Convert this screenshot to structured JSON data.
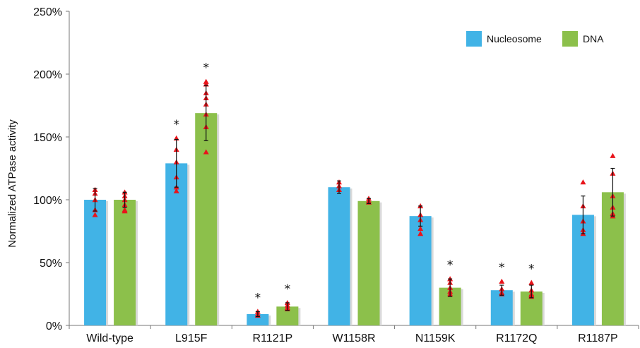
{
  "chart_data": {
    "type": "bar",
    "ylabel": "Normalized ATPase activity",
    "ylim": [
      0,
      250
    ],
    "y_ticks": [
      "0%",
      "50%",
      "100%",
      "150%",
      "200%",
      "250%"
    ],
    "categories": [
      "Wild-type",
      "L915F",
      "R1121P",
      "W1158R",
      "N1159K",
      "R1172Q",
      "R1187P"
    ],
    "legend_position": "top-right",
    "series": [
      {
        "name": "Nucleosome",
        "color": "#41b3e6",
        "values": [
          100,
          129,
          9,
          110,
          87,
          28,
          88
        ],
        "errors": [
          9,
          19,
          2,
          5,
          8,
          4,
          15
        ],
        "significant": [
          false,
          true,
          true,
          false,
          false,
          true,
          false
        ],
        "points": [
          [
            108,
            105,
            100,
            92,
            88
          ],
          [
            149,
            140,
            130,
            118,
            110,
            107
          ],
          [
            11,
            9,
            8
          ],
          [
            114,
            111,
            108
          ],
          [
            95,
            88,
            84,
            77,
            73
          ],
          [
            35,
            29,
            26,
            25
          ],
          [
            114,
            95,
            83,
            76,
            73
          ]
        ]
      },
      {
        "name": "DNA",
        "color": "#8cc04b",
        "values": [
          100,
          169,
          15,
          99,
          30,
          27,
          106
        ],
        "errors": [
          6,
          22,
          3,
          2,
          7,
          5,
          19
        ],
        "significant": [
          false,
          true,
          true,
          false,
          true,
          true,
          false
        ],
        "points": [
          [
            106,
            103,
            100,
            96,
            92,
            91
          ],
          [
            194,
            192,
            185,
            181,
            176,
            168,
            158,
            138
          ],
          [
            18,
            16,
            14,
            13
          ],
          [
            101,
            99,
            98
          ],
          [
            37,
            34,
            30,
            27,
            25
          ],
          [
            34,
            28,
            25,
            24,
            23
          ],
          [
            135,
            121,
            103,
            94,
            89,
            87
          ]
        ]
      }
    ],
    "significance_marker": "*",
    "grid": false
  }
}
